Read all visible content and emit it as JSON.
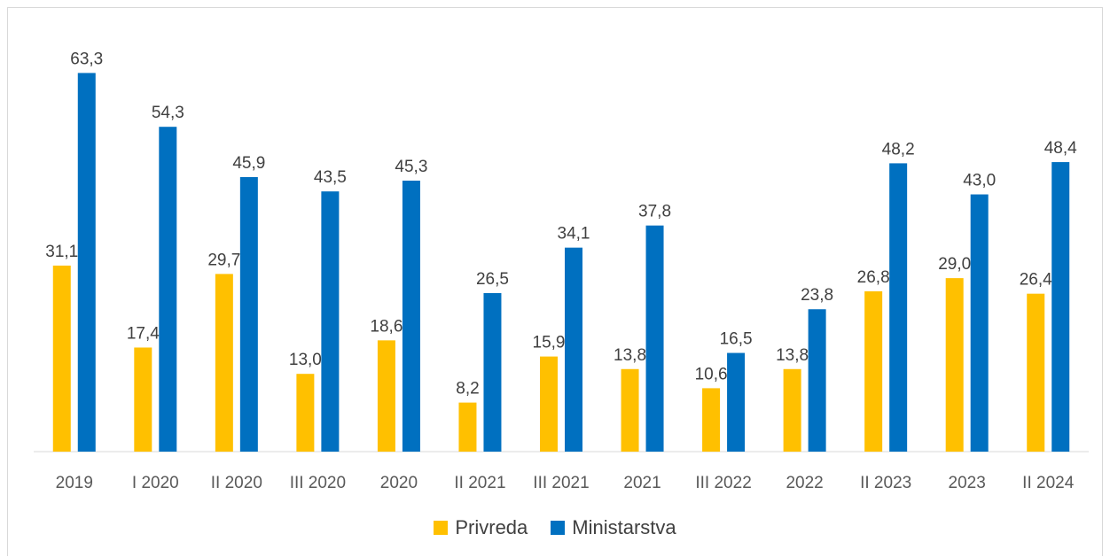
{
  "chart_data": {
    "type": "bar",
    "categories": [
      "2019",
      "I 2020",
      "II 2020",
      "III 2020",
      "2020",
      "II 2021",
      "III 2021",
      "2021",
      "III 2022",
      "2022",
      "II 2023",
      "2023",
      "II 2024"
    ],
    "series": [
      {
        "name": "Privreda",
        "color": "#FFC000",
        "values": [
          31.1,
          17.4,
          29.7,
          13.0,
          18.6,
          8.2,
          15.9,
          13.8,
          10.6,
          13.8,
          26.8,
          29.0,
          26.4
        ],
        "labels": [
          "31,1",
          "17,4",
          "29,7",
          "13,0",
          "18,6",
          "8,2",
          "15,9",
          "13,8",
          "10,6",
          "13,8",
          "26,8",
          "29,0",
          "26,4"
        ]
      },
      {
        "name": "Ministarstva",
        "color": "#0070C0",
        "values": [
          63.3,
          54.3,
          45.9,
          43.5,
          45.3,
          26.5,
          34.1,
          37.8,
          16.5,
          23.8,
          48.2,
          43.0,
          48.4
        ],
        "labels": [
          "63,3",
          "54,3",
          "45,9",
          "43,5",
          "45,3",
          "26,5",
          "34,1",
          "37,8",
          "16,5",
          "23,8",
          "48,2",
          "43,0",
          "48,4"
        ]
      }
    ],
    "ylim": [
      0,
      70
    ],
    "grid": false,
    "legend_position": "bottom"
  }
}
